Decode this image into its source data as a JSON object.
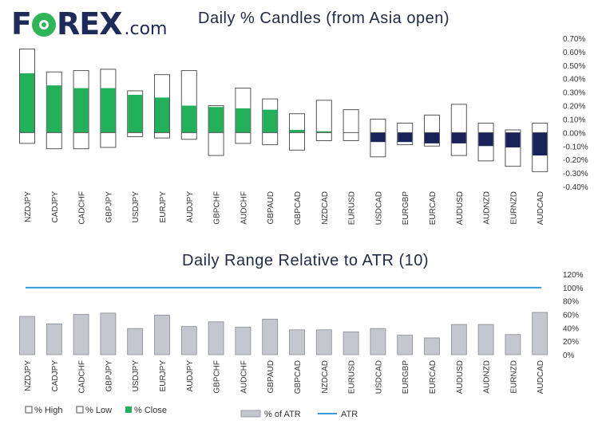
{
  "brand": {
    "name_prefix": "F",
    "name_suffix": "REX",
    "domain": ".com"
  },
  "chart_data": [
    {
      "type": "bar",
      "title": "Daily % Candles (from Asia open)",
      "categories": [
        "NZDJPY",
        "CADJPY",
        "CADCHF",
        "GBPJPY",
        "USDJPY",
        "EURJPY",
        "AUDJPY",
        "GBPCHF",
        "AUDCHF",
        "GBPAUD",
        "GBPCAD",
        "NZDCAD",
        "EURUSD",
        "USDCAD",
        "EURGBP",
        "EURCAD",
        "AUDUSD",
        "AUDNZD",
        "EURNZD",
        "AUDCAD"
      ],
      "series": [
        {
          "name": "% High",
          "values": [
            0.62,
            0.45,
            0.46,
            0.47,
            0.31,
            0.43,
            0.46,
            0.2,
            0.33,
            0.25,
            0.14,
            0.24,
            0.17,
            0.1,
            0.07,
            0.13,
            0.21,
            0.07,
            0.02,
            0.07
          ]
        },
        {
          "name": "% Low",
          "values": [
            -0.08,
            -0.12,
            -0.12,
            -0.11,
            -0.03,
            -0.04,
            -0.05,
            -0.17,
            -0.08,
            -0.09,
            -0.13,
            -0.06,
            -0.06,
            -0.18,
            -0.09,
            -0.1,
            -0.17,
            -0.21,
            -0.25,
            -0.29
          ]
        },
        {
          "name": "% Close",
          "values": [
            0.44,
            0.35,
            0.33,
            0.33,
            0.28,
            0.26,
            0.2,
            0.19,
            0.18,
            0.17,
            0.02,
            0.01,
            0.0,
            -0.07,
            -0.07,
            -0.08,
            -0.08,
            -0.1,
            -0.11,
            -0.17
          ]
        }
      ],
      "ylim": [
        -0.4,
        0.7
      ],
      "yticks": [
        "0.70%",
        "0.60%",
        "0.50%",
        "0.40%",
        "0.30%",
        "0.20%",
        "0.10%",
        "0.00%",
        "-0.10%",
        "-0.20%",
        "-0.30%",
        "-0.40%"
      ],
      "legend": [
        "% High",
        "% Low",
        "% Close"
      ],
      "legend_position": "bottom-left",
      "colors": {
        "up": "#22b05a",
        "down": "#1a2359",
        "range_box_border": "#555555"
      }
    },
    {
      "type": "bar",
      "title": "Daily Range Relative to ATR (10)",
      "categories": [
        "NZDJPY",
        "CADJPY",
        "CADCHF",
        "GBPJPY",
        "USDJPY",
        "EURJPY",
        "AUDJPY",
        "GBPCHF",
        "AUDCHF",
        "GBPAUD",
        "GBPCAD",
        "NZDCAD",
        "EURUSD",
        "USDCAD",
        "EURGBP",
        "EURCAD",
        "AUDUSD",
        "AUDNZD",
        "EURNZD",
        "AUDCAD"
      ],
      "series": [
        {
          "name": "% of ATR",
          "values": [
            57,
            46,
            60,
            62,
            39,
            59,
            42,
            49,
            41,
            53,
            37,
            37,
            34,
            39,
            29,
            25,
            45,
            45,
            30,
            63
          ]
        },
        {
          "name": "ATR",
          "values": [
            100,
            100,
            100,
            100,
            100,
            100,
            100,
            100,
            100,
            100,
            100,
            100,
            100,
            100,
            100,
            100,
            100,
            100,
            100,
            100
          ]
        }
      ],
      "ylim": [
        0,
        120
      ],
      "yticks": [
        "120%",
        "100%",
        "80%",
        "60%",
        "40%",
        "20%",
        "0%"
      ],
      "legend": [
        "% of ATR",
        "ATR"
      ],
      "legend_position": "bottom-center",
      "colors": {
        "bar_fill": "#c5c7d0",
        "bar_border": "#8a8c94",
        "atr_line": "#3a9bd8"
      }
    }
  ]
}
